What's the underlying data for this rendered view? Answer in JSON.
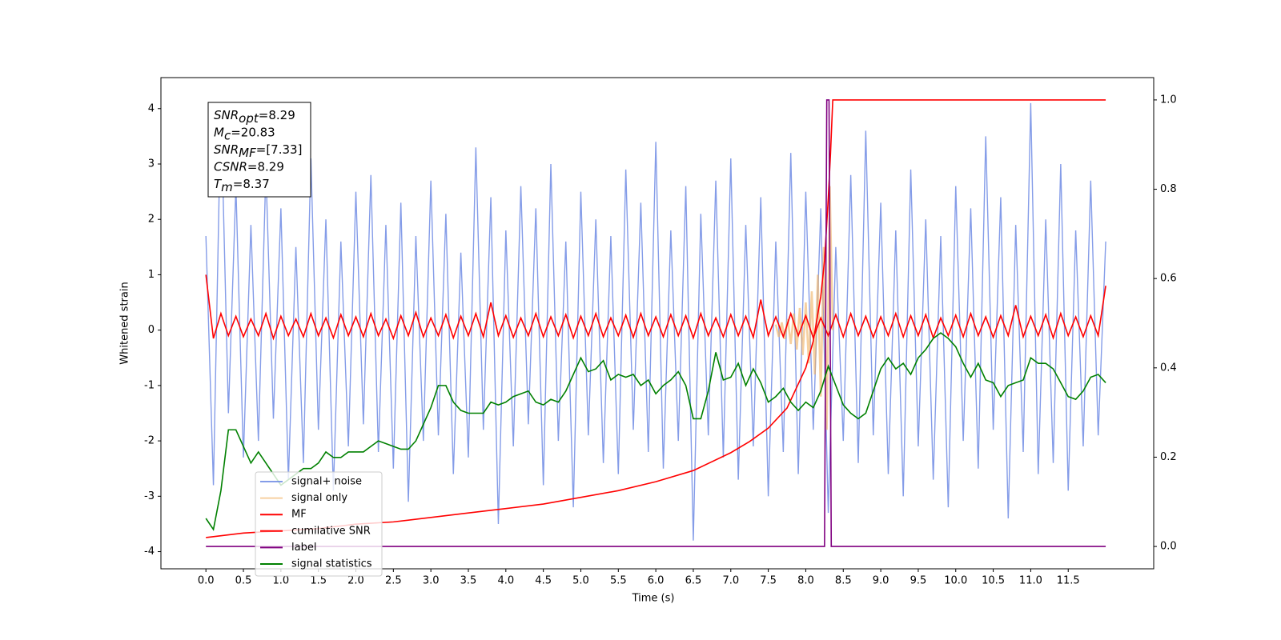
{
  "chart_data": {
    "type": "line",
    "xlabel": "Time (s)",
    "ylabel": "Whitened strain",
    "xlim": [
      -0.6,
      12.64
    ],
    "ylim": [
      -4.31,
      4.56
    ],
    "y2lim": [
      -0.05,
      1.05
    ],
    "xticks": [
      {
        "value": 0,
        "label": "0.0"
      },
      {
        "value": 0.5,
        "label": "0.5"
      },
      {
        "value": 1,
        "label": "1.0"
      },
      {
        "value": 1.5,
        "label": "1.5"
      },
      {
        "value": 2,
        "label": "2.0"
      },
      {
        "value": 2.5,
        "label": "2.5"
      },
      {
        "value": 3,
        "label": "3.0"
      },
      {
        "value": 3.5,
        "label": "3.5"
      },
      {
        "value": 4,
        "label": "4.0"
      },
      {
        "value": 4.5,
        "label": "4.5"
      },
      {
        "value": 5,
        "label": "5.0"
      },
      {
        "value": 5.5,
        "label": "5.5"
      },
      {
        "value": 6,
        "label": "6.0"
      },
      {
        "value": 6.5,
        "label": "6.5"
      },
      {
        "value": 7,
        "label": "7.0"
      },
      {
        "value": 7.5,
        "label": "7.5"
      },
      {
        "value": 8,
        "label": "8.0"
      },
      {
        "value": 8.5,
        "label": "8.5"
      },
      {
        "value": 9,
        "label": "9.0"
      },
      {
        "value": 9.5,
        "label": "9.5"
      },
      {
        "value": 10,
        "label": "10.0"
      },
      {
        "value": 10.5,
        "label": "10.5"
      },
      {
        "value": 11,
        "label": "11.0"
      },
      {
        "value": 11.5,
        "label": "11.5"
      }
    ],
    "yticks": [
      -4,
      -3,
      -2,
      -1,
      0,
      1,
      2,
      3,
      4
    ],
    "y2ticks": [
      {
        "value": 0,
        "label": "0.0"
      },
      {
        "value": 0.2,
        "label": "0.2"
      },
      {
        "value": 0.4,
        "label": "0.4"
      },
      {
        "value": 0.6,
        "label": "0.6"
      },
      {
        "value": 0.8,
        "label": "0.8"
      },
      {
        "value": 1,
        "label": "1.0"
      }
    ],
    "x": [
      0,
      0.1,
      0.2,
      0.3,
      0.4,
      0.5,
      0.6,
      0.7,
      0.8,
      0.9,
      1,
      1.1,
      1.2,
      1.3,
      1.4,
      1.5,
      1.6,
      1.7,
      1.8,
      1.9,
      2,
      2.1,
      2.2,
      2.3,
      2.4,
      2.5,
      2.6,
      2.7,
      2.8,
      2.9,
      3,
      3.1,
      3.2,
      3.3,
      3.4,
      3.5,
      3.6,
      3.7,
      3.8,
      3.9,
      4,
      4.1,
      4.2,
      4.3,
      4.4,
      4.5,
      4.6,
      4.7,
      4.8,
      4.9,
      5,
      5.1,
      5.2,
      5.3,
      5.4,
      5.5,
      5.6,
      5.7,
      5.8,
      5.9,
      6,
      6.1,
      6.2,
      6.3,
      6.4,
      6.5,
      6.6,
      6.7,
      6.8,
      6.9,
      7,
      7.1,
      7.2,
      7.3,
      7.4,
      7.5,
      7.6,
      7.7,
      7.8,
      7.9,
      8,
      8.1,
      8.2,
      8.3,
      8.4,
      8.5,
      8.6,
      8.7,
      8.8,
      8.9,
      9,
      9.1,
      9.2,
      9.3,
      9.4,
      9.5,
      9.6,
      9.7,
      9.8,
      9.9,
      10,
      10.1,
      10.2,
      10.3,
      10.4,
      10.5,
      10.6,
      10.7,
      10.8,
      10.9,
      11,
      11.1,
      11.2,
      11.3,
      11.4,
      11.5,
      11.6,
      11.7,
      11.8,
      11.9,
      12
    ],
    "series": [
      {
        "name": "signal+ noise",
        "color": "#6f8be4",
        "values": [
          1.7,
          -2.8,
          4.1,
          -1.5,
          2.6,
          -2.3,
          1.9,
          -2.0,
          2.9,
          -1.6,
          2.2,
          -2.7,
          1.5,
          -2.4,
          3.1,
          -1.8,
          2.0,
          -2.9,
          1.6,
          -2.1,
          2.5,
          -1.7,
          2.8,
          -2.2,
          1.9,
          -2.5,
          2.3,
          -3.1,
          1.7,
          -2.0,
          2.7,
          -1.9,
          2.1,
          -2.6,
          1.4,
          -2.3,
          3.3,
          -1.8,
          2.4,
          -3.5,
          1.8,
          -2.1,
          2.6,
          -1.7,
          2.2,
          -2.8,
          3.0,
          -2.0,
          1.6,
          -3.2,
          2.5,
          -1.9,
          2.0,
          -2.4,
          1.7,
          -2.6,
          2.9,
          -1.8,
          2.3,
          -2.2,
          3.4,
          -2.5,
          1.8,
          -2.0,
          2.6,
          -3.8,
          2.1,
          -1.9,
          2.7,
          -2.3,
          3.1,
          -2.7,
          1.9,
          -2.1,
          2.4,
          -3.0,
          1.6,
          -2.2,
          3.2,
          -2.6,
          2.5,
          -1.8,
          2.2,
          -3.3,
          1.5,
          -2.0,
          2.8,
          -2.4,
          3.6,
          -1.9,
          2.3,
          -2.6,
          1.8,
          -3.0,
          2.9,
          -2.1,
          2.0,
          -2.7,
          1.7,
          -3.2,
          2.6,
          -2.0,
          2.2,
          -2.5,
          3.5,
          -1.8,
          2.4,
          -3.4,
          1.9,
          -2.2,
          4.1,
          -2.6,
          2.0,
          -2.4,
          3.0,
          -2.9,
          1.8,
          -2.1,
          2.7,
          -1.9,
          1.6
        ]
      },
      {
        "name": "signal only",
        "color": "#f0b060",
        "x": [
          7.6,
          7.64,
          7.68,
          7.72,
          7.76,
          7.8,
          7.84,
          7.88,
          7.92,
          7.96,
          8.0,
          8.04,
          8.08,
          8.12,
          8.16,
          8.2,
          8.24,
          8.28,
          8.32,
          8.36
        ],
        "values": [
          0.1,
          -0.12,
          0.14,
          -0.16,
          0.2,
          -0.25,
          0.3,
          -0.35,
          0.4,
          -0.45,
          0.5,
          -0.6,
          0.7,
          -0.8,
          1.0,
          -1.2,
          1.5,
          -1.8,
          2.6,
          0.0
        ]
      },
      {
        "name": "MF",
        "color": "#ff0000",
        "values": [
          1.0,
          -0.15,
          0.3,
          -0.1,
          0.25,
          -0.12,
          0.2,
          -0.1,
          0.3,
          -0.15,
          0.25,
          -0.1,
          0.2,
          -0.12,
          0.3,
          -0.1,
          0.22,
          -0.14,
          0.28,
          -0.1,
          0.24,
          -0.12,
          0.3,
          -0.1,
          0.2,
          -0.15,
          0.26,
          -0.1,
          0.32,
          -0.12,
          0.22,
          -0.1,
          0.28,
          -0.14,
          0.25,
          -0.1,
          0.3,
          -0.12,
          0.5,
          -0.1,
          0.26,
          -0.13,
          0.22,
          -0.1,
          0.3,
          -0.12,
          0.24,
          -0.1,
          0.28,
          -0.14,
          0.25,
          -0.1,
          0.3,
          -0.12,
          0.22,
          -0.1,
          0.27,
          -0.13,
          0.3,
          -0.1,
          0.24,
          -0.12,
          0.28,
          -0.1,
          0.26,
          -0.14,
          0.3,
          -0.1,
          0.22,
          -0.12,
          0.28,
          -0.1,
          0.25,
          -0.13,
          0.55,
          -0.1,
          0.24,
          -0.12,
          0.3,
          -0.1,
          0.26,
          -0.14,
          0.22,
          -0.1,
          0.28,
          -0.12,
          0.3,
          -0.1,
          0.25,
          -0.13,
          0.24,
          -0.1,
          0.3,
          -0.12,
          0.26,
          -0.1,
          0.28,
          -0.14,
          0.22,
          -0.1,
          0.27,
          -0.12,
          0.3,
          -0.1,
          0.24,
          -0.13,
          0.26,
          -0.1,
          0.45,
          -0.12,
          0.25,
          -0.1,
          0.28,
          -0.14,
          0.3,
          -0.1,
          0.24,
          -0.12,
          0.26,
          -0.1,
          0.8
        ]
      },
      {
        "name": "cumilative SNR",
        "color": "#ff0000",
        "axis": "y2",
        "x": [
          0,
          0.5,
          1,
          1.5,
          2,
          2.5,
          3,
          3.5,
          4,
          4.5,
          5,
          5.5,
          6,
          6.5,
          7,
          7.25,
          7.5,
          7.75,
          8,
          8.1,
          8.2,
          8.25,
          8.3,
          8.33,
          8.36,
          8.4,
          12.0
        ],
        "values": [
          0.02,
          0.03,
          0.035,
          0.04,
          0.05,
          0.055,
          0.065,
          0.075,
          0.085,
          0.095,
          0.11,
          0.125,
          0.145,
          0.17,
          0.21,
          0.235,
          0.265,
          0.31,
          0.4,
          0.46,
          0.56,
          0.64,
          0.78,
          0.88,
          1.0,
          1.0,
          1.0
        ]
      },
      {
        "name": "label",
        "color": "#800080",
        "axis": "y2",
        "x": [
          0,
          8.25,
          8.28,
          8.31,
          8.34,
          12.0
        ],
        "values": [
          0,
          0,
          1,
          1,
          0,
          0
        ]
      },
      {
        "name": "signal statistics",
        "color": "#008000",
        "values": [
          -3.4,
          -3.6,
          -2.9,
          -1.8,
          -1.8,
          -2.1,
          -2.4,
          -2.2,
          -2.4,
          -2.6,
          -2.8,
          -2.7,
          -2.6,
          -2.5,
          -2.5,
          -2.4,
          -2.2,
          -2.3,
          -2.3,
          -2.2,
          -2.2,
          -2.2,
          -2.1,
          -2.0,
          -2.05,
          -2.1,
          -2.15,
          -2.15,
          -2.0,
          -1.7,
          -1.4,
          -1.0,
          -1.0,
          -1.3,
          -1.45,
          -1.5,
          -1.5,
          -1.5,
          -1.3,
          -1.35,
          -1.3,
          -1.2,
          -1.15,
          -1.1,
          -1.3,
          -1.35,
          -1.25,
          -1.3,
          -1.1,
          -0.8,
          -0.5,
          -0.75,
          -0.7,
          -0.55,
          -0.9,
          -0.8,
          -0.85,
          -0.8,
          -1.0,
          -0.9,
          -1.15,
          -1.0,
          -0.9,
          -0.75,
          -1.0,
          -1.6,
          -1.6,
          -1.1,
          -0.4,
          -0.9,
          -0.85,
          -0.6,
          -1.0,
          -0.7,
          -0.95,
          -1.3,
          -1.2,
          -1.05,
          -1.3,
          -1.45,
          -1.3,
          -1.4,
          -1.1,
          -0.65,
          -1.0,
          -1.35,
          -1.5,
          -1.6,
          -1.5,
          -1.1,
          -0.7,
          -0.5,
          -0.7,
          -0.6,
          -0.8,
          -0.5,
          -0.35,
          -0.15,
          -0.05,
          -0.15,
          -0.3,
          -0.6,
          -0.85,
          -0.6,
          -0.9,
          -0.95,
          -1.2,
          -1.0,
          -0.95,
          -0.9,
          -0.5,
          -0.6,
          -0.6,
          -0.7,
          -0.95,
          -1.2,
          -1.25,
          -1.1,
          -0.85,
          -0.8,
          -0.95
        ]
      }
    ],
    "annotation": [
      {
        "base": "SNR",
        "sub": "opt",
        "text": "=8.29"
      },
      {
        "base": "M",
        "sub": "c",
        "text": "=20.83"
      },
      {
        "base": "SNR",
        "sub": "MF",
        "text": "=[7.33]"
      },
      {
        "base": "CSNR",
        "sub": null,
        "text": "=8.29"
      },
      {
        "base": "T",
        "sub": "m",
        "text": "=8.37"
      }
    ]
  }
}
